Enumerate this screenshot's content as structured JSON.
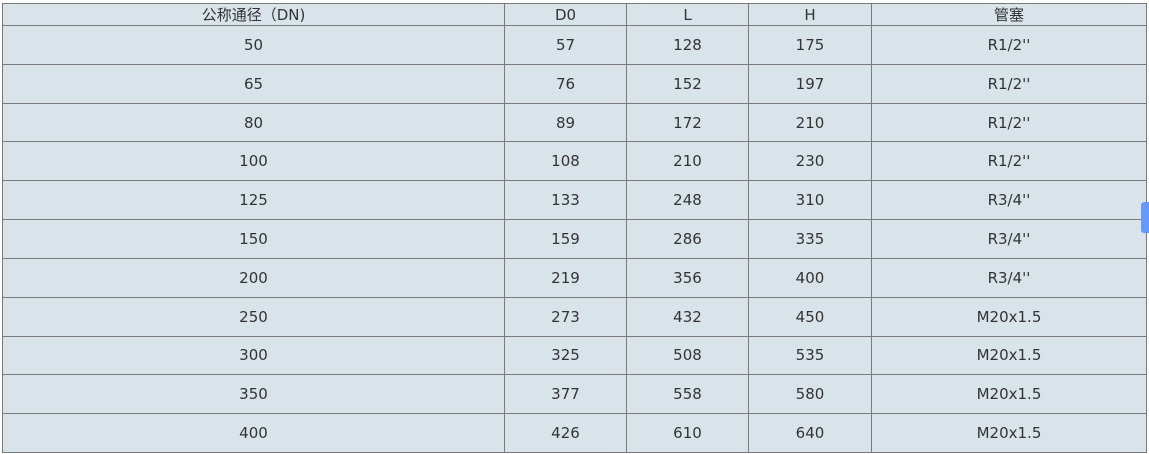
{
  "headers": [
    "公称通径（DN)",
    "D0",
    "L",
    "H",
    "管塞"
  ],
  "rows": [
    [
      "50",
      "57",
      "128",
      "175",
      "R1/2''"
    ],
    [
      "65",
      "76",
      "152",
      "197",
      "R1/2''"
    ],
    [
      "80",
      "89",
      "172",
      "210",
      "R1/2''"
    ],
    [
      "100",
      "108",
      "210",
      "230",
      "R1/2''"
    ],
    [
      "125",
      "133",
      "248",
      "310",
      "R3/4''"
    ],
    [
      "150",
      "159",
      "286",
      "335",
      "R3/4''"
    ],
    [
      "200",
      "219",
      "356",
      "400",
      "R3/4''"
    ],
    [
      "250",
      "273",
      "432",
      "450",
      "M20x1.5"
    ],
    [
      "300",
      "325",
      "508",
      "535",
      "M20x1.5"
    ],
    [
      "350",
      "377",
      "558",
      "580",
      "M20x1.5"
    ],
    [
      "400",
      "426",
      "610",
      "640",
      "M20x1.5"
    ]
  ],
  "colors": {
    "background": "#d9e4ea",
    "side_tab": "#6699ff"
  }
}
